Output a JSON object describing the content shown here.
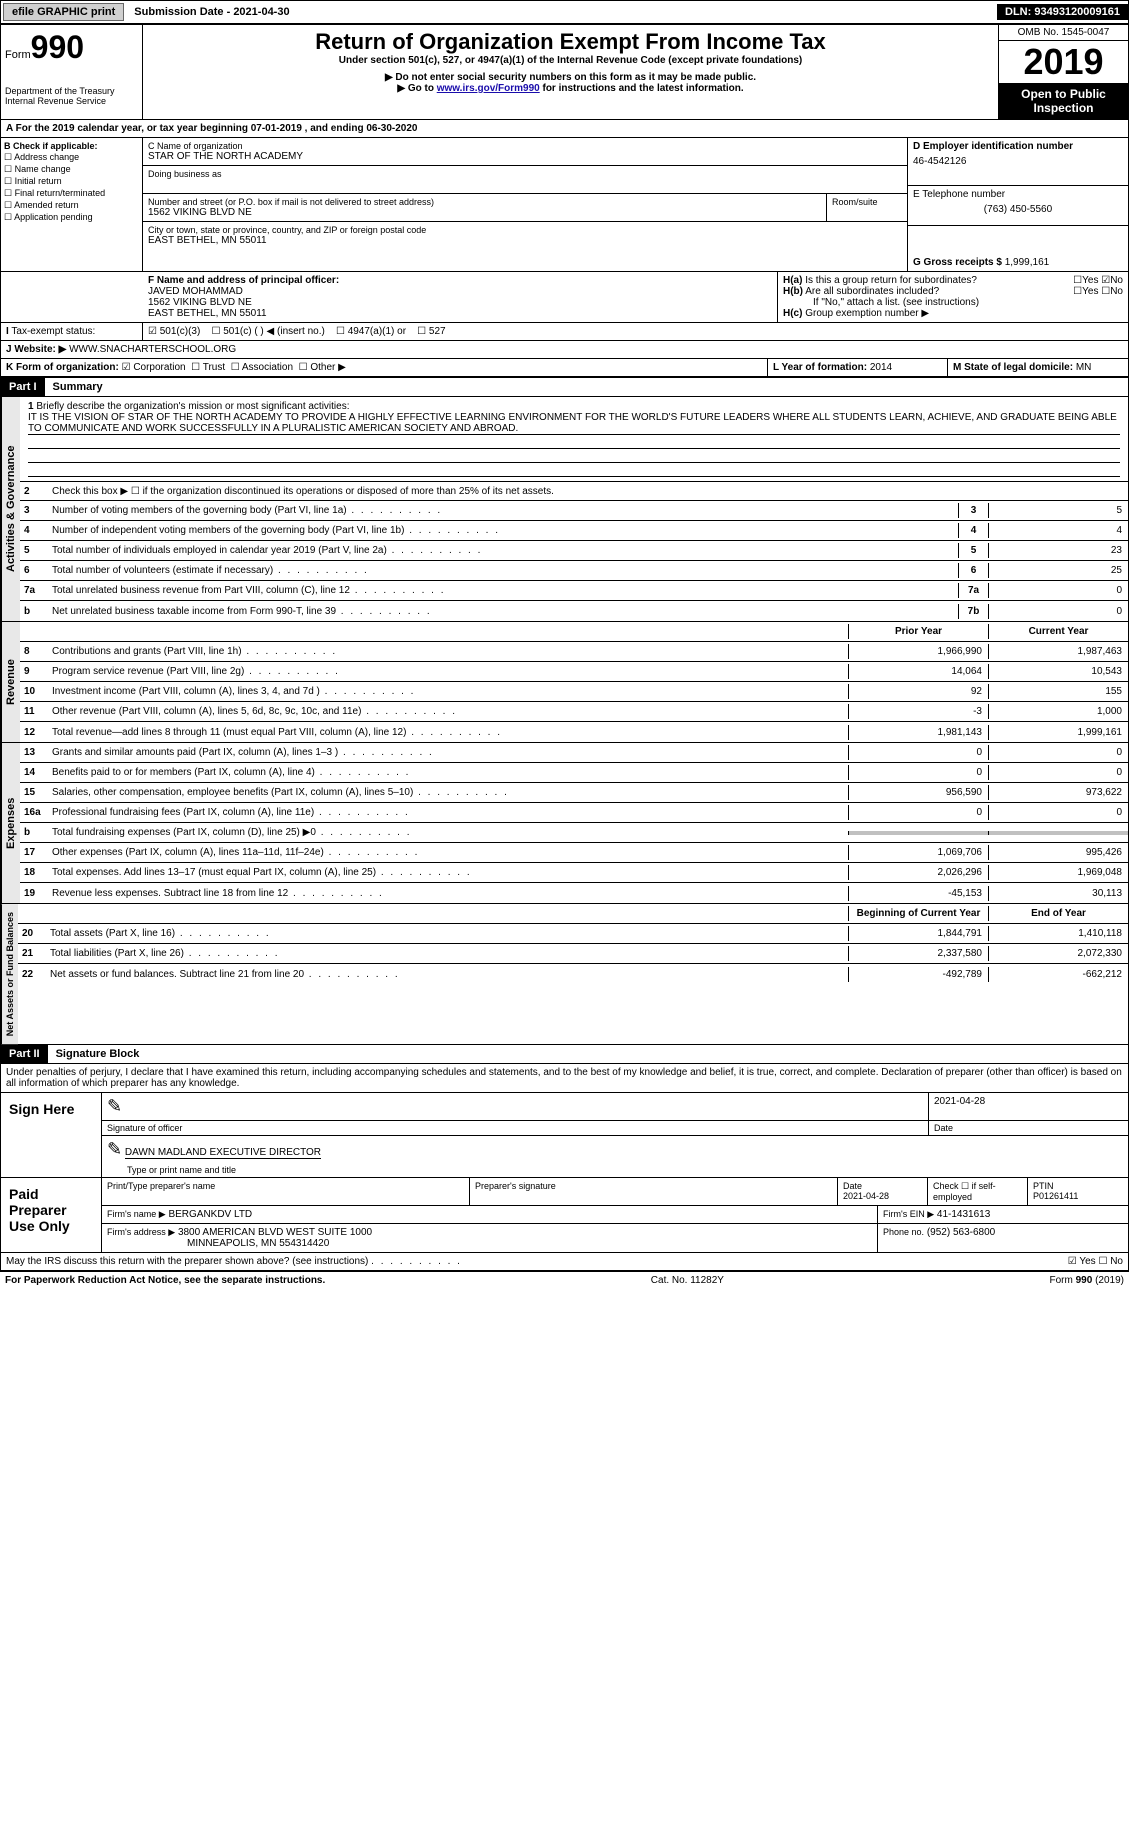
{
  "topbar": {
    "efile": "efile GRAPHIC print",
    "submission": "Submission Date - 2021-04-30",
    "dln": "DLN: 93493120009161"
  },
  "header": {
    "form_label": "Form",
    "form_num": "990",
    "dept1": "Department of the Treasury",
    "dept2": "Internal Revenue Service",
    "title": "Return of Organization Exempt From Income Tax",
    "subtitle": "Under section 501(c), 527, or 4947(a)(1) of the Internal Revenue Code (except private foundations)",
    "note1": "▶ Do not enter social security numbers on this form as it may be made public.",
    "note2_pre": "▶ Go to ",
    "note2_link": "www.irs.gov/Form990",
    "note2_post": " for instructions and the latest information.",
    "omb": "OMB No. 1545-0047",
    "year": "2019",
    "open_public": "Open to Public Inspection"
  },
  "period": "For the 2019 calendar year, or tax year beginning 07-01-2019   , and ending 06-30-2020",
  "box_b": {
    "label": "B Check if applicable:",
    "items": [
      "Address change",
      "Name change",
      "Initial return",
      "Final return/terminated",
      "Amended return",
      "Application pending"
    ]
  },
  "box_c": {
    "label": "C Name of organization",
    "name": "STAR OF THE NORTH ACADEMY",
    "dba_label": "Doing business as",
    "addr_label": "Number and street (or P.O. box if mail is not delivered to street address)",
    "room_label": "Room/suite",
    "addr": "1562 VIKING BLVD NE",
    "city_label": "City or town, state or province, country, and ZIP or foreign postal code",
    "city": "EAST BETHEL, MN  55011"
  },
  "box_d": {
    "label": "D Employer identification number",
    "ein": "46-4542126"
  },
  "box_e": {
    "label": "E Telephone number",
    "phone": "(763) 450-5560"
  },
  "box_g": {
    "label": "G Gross receipts $",
    "value": "1,999,161"
  },
  "box_f": {
    "label": "F Name and address of principal officer:",
    "name": "JAVED MOHAMMAD",
    "addr1": "1562 VIKING BLVD NE",
    "addr2": "EAST BETHEL, MN  55011"
  },
  "box_h": {
    "ha": "Is this a group return for subordinates?",
    "hb": "Are all subordinates included?",
    "hb_note": "If \"No,\" attach a list. (see instructions)",
    "hc": "Group exemption number ▶",
    "yes": "Yes",
    "no": "No"
  },
  "box_i": {
    "label": "Tax-exempt status:",
    "opt1": "501(c)(3)",
    "opt2": "501(c) (  ) ◀ (insert no.)",
    "opt3": "4947(a)(1) or",
    "opt4": "527"
  },
  "box_j": {
    "label": "Website: ▶",
    "value": "WWW.SNACHARTERSCHOOL.ORG"
  },
  "box_k": {
    "label": "K Form of organization:",
    "corp": "Corporation",
    "trust": "Trust",
    "assoc": "Association",
    "other": "Other ▶"
  },
  "box_l": {
    "label": "L Year of formation:",
    "value": "2014"
  },
  "box_m": {
    "label": "M State of legal domicile:",
    "value": "MN"
  },
  "part1": {
    "header": "Part I",
    "title": "Summary",
    "line1_label": "Briefly describe the organization's mission or most significant activities:",
    "mission": "IT IS THE VISION OF STAR OF THE NORTH ACADEMY TO PROVIDE A HIGHLY EFFECTIVE LEARNING ENVIRONMENT FOR THE WORLD'S FUTURE LEADERS WHERE ALL STUDENTS LEARN, ACHIEVE, AND GRADUATE BEING ABLE TO COMMUNICATE AND WORK SUCCESSFULLY IN A PLURALISTIC AMERICAN SOCIETY AND ABROAD.",
    "line2": "Check this box ▶ ☐  if the organization discontinued its operations or disposed of more than 25% of its net assets.",
    "vlabel_ag": "Activities & Governance",
    "vlabel_rev": "Revenue",
    "vlabel_exp": "Expenses",
    "vlabel_net": "Net Assets or Fund Balances",
    "lines_ag": [
      {
        "n": "3",
        "t": "Number of voting members of the governing body (Part VI, line 1a)",
        "b": "3",
        "v": "5"
      },
      {
        "n": "4",
        "t": "Number of independent voting members of the governing body (Part VI, line 1b)",
        "b": "4",
        "v": "4"
      },
      {
        "n": "5",
        "t": "Total number of individuals employed in calendar year 2019 (Part V, line 2a)",
        "b": "5",
        "v": "23"
      },
      {
        "n": "6",
        "t": "Total number of volunteers (estimate if necessary)",
        "b": "6",
        "v": "25"
      },
      {
        "n": "7a",
        "t": "Total unrelated business revenue from Part VIII, column (C), line 12",
        "b": "7a",
        "v": "0"
      },
      {
        "n": "b",
        "t": "Net unrelated business taxable income from Form 990-T, line 39",
        "b": "7b",
        "v": "0"
      }
    ],
    "col_prior": "Prior Year",
    "col_current": "Current Year",
    "lines_rev": [
      {
        "n": "8",
        "t": "Contributions and grants (Part VIII, line 1h)",
        "p": "1,966,990",
        "c": "1,987,463"
      },
      {
        "n": "9",
        "t": "Program service revenue (Part VIII, line 2g)",
        "p": "14,064",
        "c": "10,543"
      },
      {
        "n": "10",
        "t": "Investment income (Part VIII, column (A), lines 3, 4, and 7d )",
        "p": "92",
        "c": "155"
      },
      {
        "n": "11",
        "t": "Other revenue (Part VIII, column (A), lines 5, 6d, 8c, 9c, 10c, and 11e)",
        "p": "-3",
        "c": "1,000"
      },
      {
        "n": "12",
        "t": "Total revenue—add lines 8 through 11 (must equal Part VIII, column (A), line 12)",
        "p": "1,981,143",
        "c": "1,999,161"
      }
    ],
    "lines_exp": [
      {
        "n": "13",
        "t": "Grants and similar amounts paid (Part IX, column (A), lines 1–3 )",
        "p": "0",
        "c": "0"
      },
      {
        "n": "14",
        "t": "Benefits paid to or for members (Part IX, column (A), line 4)",
        "p": "0",
        "c": "0"
      },
      {
        "n": "15",
        "t": "Salaries, other compensation, employee benefits (Part IX, column (A), lines 5–10)",
        "p": "956,590",
        "c": "973,622"
      },
      {
        "n": "16a",
        "t": "Professional fundraising fees (Part IX, column (A), line 11e)",
        "p": "0",
        "c": "0"
      },
      {
        "n": "b",
        "t": "Total fundraising expenses (Part IX, column (D), line 25) ▶0",
        "p": "",
        "c": "",
        "shaded": true
      },
      {
        "n": "17",
        "t": "Other expenses (Part IX, column (A), lines 11a–11d, 11f–24e)",
        "p": "1,069,706",
        "c": "995,426"
      },
      {
        "n": "18",
        "t": "Total expenses. Add lines 13–17 (must equal Part IX, column (A), line 25)",
        "p": "2,026,296",
        "c": "1,969,048"
      },
      {
        "n": "19",
        "t": "Revenue less expenses. Subtract line 18 from line 12",
        "p": "-45,153",
        "c": "30,113"
      }
    ],
    "col_begin": "Beginning of Current Year",
    "col_end": "End of Year",
    "lines_net": [
      {
        "n": "20",
        "t": "Total assets (Part X, line 16)",
        "p": "1,844,791",
        "c": "1,410,118"
      },
      {
        "n": "21",
        "t": "Total liabilities (Part X, line 26)",
        "p": "2,337,580",
        "c": "2,072,330"
      },
      {
        "n": "22",
        "t": "Net assets or fund balances. Subtract line 21 from line 20",
        "p": "-492,789",
        "c": "-662,212"
      }
    ]
  },
  "part2": {
    "header": "Part II",
    "title": "Signature Block",
    "declaration": "Under penalties of perjury, I declare that I have examined this return, including accompanying schedules and statements, and to the best of my knowledge and belief, it is true, correct, and complete. Declaration of preparer (other than officer) is based on all information of which preparer has any knowledge.",
    "sign_here": "Sign Here",
    "sig_officer": "Signature of officer",
    "sig_date": "2021-04-28",
    "date_label": "Date",
    "officer_name": "DAWN MADLAND  EXECUTIVE DIRECTOR",
    "type_name": "Type or print name and title",
    "paid_prep": "Paid Preparer Use Only",
    "prep_name_label": "Print/Type preparer's name",
    "prep_sig_label": "Preparer's signature",
    "prep_date": "2021-04-28",
    "check_self": "Check ☐ if self-employed",
    "ptin_label": "PTIN",
    "ptin": "P01261411",
    "firm_name_label": "Firm's name    ▶",
    "firm_name": "BERGANKDV LTD",
    "firm_ein_label": "Firm's EIN ▶",
    "firm_ein": "41-1431613",
    "firm_addr_label": "Firm's address ▶",
    "firm_addr1": "3800 AMERICAN BLVD WEST SUITE 1000",
    "firm_addr2": "MINNEAPOLIS, MN  554314420",
    "firm_phone_label": "Phone no.",
    "firm_phone": "(952) 563-6800",
    "discuss": "May the IRS discuss this return with the preparer shown above? (see instructions)"
  },
  "footer": {
    "paperwork": "For Paperwork Reduction Act Notice, see the separate instructions.",
    "cat": "Cat. No. 11282Y",
    "form": "Form 990 (2019)"
  }
}
